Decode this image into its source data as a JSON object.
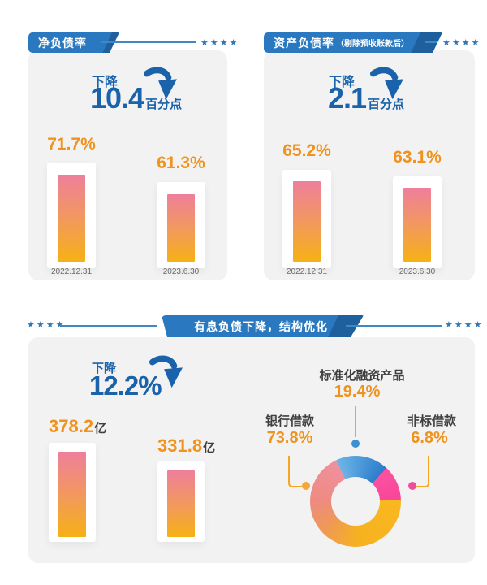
{
  "colors": {
    "banner_blue": "#2a79c0",
    "banner_fold_blue": "#1e5f9e",
    "accent_blue": "#1a63ab",
    "line_blue": "#4187c4",
    "star_blue": "#2e76b8",
    "orange_text": "#f0931d",
    "dark_text": "#3f3f3f",
    "date_gray": "#6b6b6b",
    "panel_bg": "#f2f2f3",
    "bar_gradient_top": "#ee7f9b",
    "bar_gradient_bottom": "#f6b115",
    "donut_blue": "#2b7ccc",
    "donut_pink": "#f8469a",
    "donut_yellow": "#f8b81f",
    "donut_salmon": "#ee8b80",
    "dot_blue": "#3a90d4",
    "dot_orange": "#f2a83c",
    "dot_pink": "#ee4e9b"
  },
  "net_debt_panel": {
    "title": "净负债率",
    "stars": "★★★★",
    "decrease_label": "下降",
    "decrease_value": "10.4",
    "decrease_unit": "百分点",
    "bars": [
      {
        "value": "71.7%",
        "date": "2022.12.31"
      },
      {
        "value": "61.3%",
        "date": "2023.6.30"
      }
    ]
  },
  "asset_liability_panel": {
    "title": "资产负债率",
    "title_note": "（剔除预收账款后）",
    "stars": "★★★★",
    "decrease_label": "下降",
    "decrease_value": "2.1",
    "decrease_unit": "百分点",
    "bars": [
      {
        "value": "65.2%",
        "date": "2022.12.31"
      },
      {
        "value": "63.1%",
        "date": "2023.6.30"
      }
    ]
  },
  "interest_debt_panel": {
    "title": "有息负债下降，结构优化",
    "stars_left": "★★★★",
    "stars_right": "★★★★",
    "decrease_label": "下降",
    "decrease_value": "12.2%",
    "bars": [
      {
        "value": "378.2",
        "unit": "亿"
      },
      {
        "value": "331.8",
        "unit": "亿"
      }
    ],
    "donut_labels": {
      "top": {
        "name": "标准化融资产品",
        "value": "19.4%"
      },
      "left": {
        "name": "银行借款",
        "value": "73.8%"
      },
      "right": {
        "name": "非标借款",
        "value": "6.8%"
      }
    }
  },
  "chart_data": [
    {
      "type": "bar",
      "title": "净负债率",
      "categories": [
        "2022.12.31",
        "2023.6.30"
      ],
      "values": [
        71.7,
        61.3
      ],
      "unit": "%",
      "annotation": "下降10.4百分点"
    },
    {
      "type": "bar",
      "title": "资产负债率（剔除预收账款后）",
      "categories": [
        "2022.12.31",
        "2023.6.30"
      ],
      "values": [
        65.2,
        63.1
      ],
      "unit": "%",
      "annotation": "下降2.1百分点"
    },
    {
      "type": "bar",
      "title": "有息负债下降，结构优化",
      "values": [
        378.2,
        331.8
      ],
      "unit": "亿",
      "annotation": "下降12.2%"
    },
    {
      "type": "pie",
      "title": "有息负债下降，结构优化",
      "labels": [
        "银行借款",
        "标准化融资产品",
        "非标借款"
      ],
      "values": [
        73.8,
        19.4,
        6.8
      ],
      "unit": "%",
      "colors": [
        "#ee8b80",
        "#2b7ccc",
        "#f8469a"
      ]
    }
  ]
}
